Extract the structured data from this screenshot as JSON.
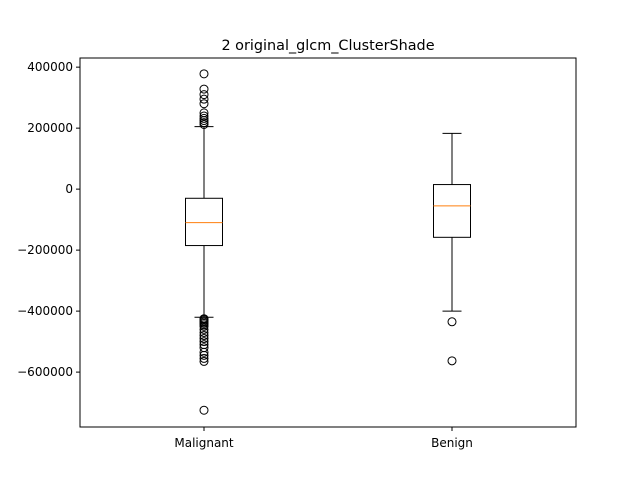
{
  "chart_data": {
    "type": "box",
    "title": "2 original_glcm_ClusterShade",
    "xlabel": "",
    "ylabel": "",
    "categories": [
      "Malignant",
      "Benign"
    ],
    "ylim": [
      -780000,
      430000
    ],
    "yticks": [
      400000,
      200000,
      0,
      -200000,
      -400000,
      -600000
    ],
    "ytick_labels": [
      "400000",
      "200000",
      "0",
      "−200000",
      "−400000",
      "−600000"
    ],
    "grid": false,
    "boxes": [
      {
        "name": "Malignant",
        "whisker_low": -420000,
        "q1": -185000,
        "median": -110000,
        "q3": -30000,
        "whisker_high": 205000,
        "fliers": [
          378000,
          328000,
          310000,
          295000,
          280000,
          250000,
          240000,
          232000,
          225000,
          218000,
          212000,
          -425000,
          -428000,
          -432000,
          -436000,
          -440000,
          -445000,
          -450000,
          -460000,
          -470000,
          -480000,
          -490000,
          -500000,
          -510000,
          -520000,
          -535000,
          -545000,
          -555000,
          -565000,
          -725000
        ]
      },
      {
        "name": "Benign",
        "whisker_low": -400000,
        "q1": -158000,
        "median": -55000,
        "q3": 15000,
        "whisker_high": 183000,
        "fliers": [
          -435000,
          -563000
        ]
      }
    ]
  }
}
